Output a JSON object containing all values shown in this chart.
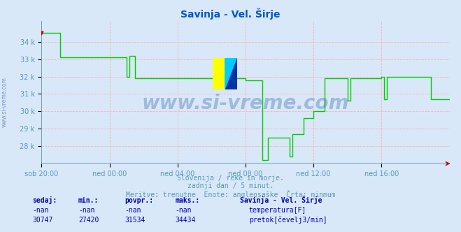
{
  "title": "Savinja - Vel. Širje",
  "title_color": "#0055cc",
  "bg_color": "#d8e8f8",
  "plot_bg_color": "#d8e8f8",
  "grid_color": "#ffaaaa",
  "line_color": "#00cc00",
  "line_width": 1.0,
  "x_labels": [
    "sob 20:00",
    "ned 00:00",
    "ned 04:00",
    "ned 08:00",
    "ned 12:00",
    "ned 16:00"
  ],
  "y_min": 27000,
  "y_max": 35200,
  "y_ticks": [
    28000,
    29000,
    30000,
    31000,
    32000,
    33000,
    34000
  ],
  "y_tick_labels": [
    "28 k",
    "29 k",
    "30 k",
    "31 k",
    "32 k",
    "33 k",
    "34 k"
  ],
  "watermark": "www.si-vreme.com",
  "watermark_color": "#3366aa",
  "watermark_alpha": 0.35,
  "subtitle1": "Slovenija / reke in morje.",
  "subtitle2": "zadnji dan / 5 minut.",
  "subtitle3": "Meritve: trenutne  Enote: angleosaške  Črta: minmum",
  "subtitle_color": "#5599bb",
  "table_header_color": "#0000bb",
  "table_value_color": "#0000bb",
  "table_cols": [
    "sedaj:",
    "min.:",
    "povpr.:",
    "maks.:"
  ],
  "table_values": [
    "-nan",
    "-nan",
    "-nan",
    "-nan"
  ],
  "flow_values": [
    "30747",
    "27420",
    "31534",
    "34434"
  ],
  "legend_title": "Savinja - Vel. Širje",
  "legend_temp_label": "temperatura[F]",
  "legend_flow_label": "pretok[čevelj3/min]",
  "legend_temp_color": "#cc0000",
  "legend_flow_color": "#00aa00",
  "axis_color": "#5599bb",
  "tick_color": "#5599bb",
  "sidebar_text": "www.si-vreme.com",
  "n_points": 289,
  "bottom_line_color": "#5599bb",
  "right_arrow_color": "#cc0000"
}
